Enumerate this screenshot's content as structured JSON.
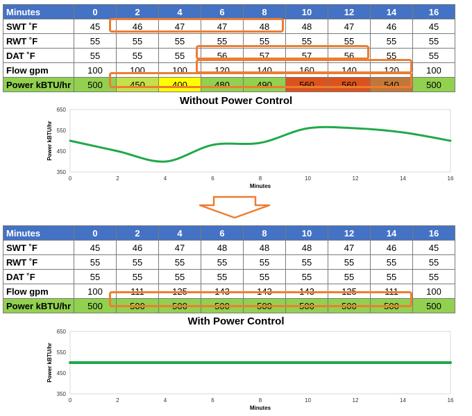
{
  "table_before": {
    "header": {
      "label": "Minutes",
      "values": [
        "0",
        "2",
        "4",
        "6",
        "8",
        "10",
        "12",
        "14",
        "16"
      ]
    },
    "rows": [
      {
        "label": "SWT ˚F",
        "values": [
          "45",
          "46",
          "47",
          "47",
          "48",
          "48",
          "47",
          "46",
          "45"
        ]
      },
      {
        "label": "RWT ˚F",
        "values": [
          "55",
          "55",
          "55",
          "55",
          "55",
          "55",
          "55",
          "55",
          "55"
        ]
      },
      {
        "label": "DAT ˚F",
        "values": [
          "55",
          "55",
          "55",
          "56",
          "57",
          "57",
          "56",
          "55",
          "55"
        ]
      },
      {
        "label": "Flow gpm",
        "values": [
          "100",
          "100",
          "100",
          "120",
          "140",
          "160",
          "140",
          "120",
          "100"
        ]
      }
    ],
    "power": {
      "label": "Power kBTU/hr",
      "values": [
        "500",
        "450",
        "400",
        "480",
        "490",
        "560",
        "560",
        "540",
        "500"
      ],
      "colors": [
        "#92d050",
        "#c4e14b",
        "#ffff00",
        "#92d050",
        "#92d050",
        "#d9531e",
        "#d9531e",
        "#c0773a",
        "#92d050"
      ],
      "text_colors": [
        "#000",
        "#000",
        "#000",
        "#000",
        "#000",
        "#000",
        "#000",
        "#000",
        "#000"
      ]
    }
  },
  "table_after": {
    "header": {
      "label": "Minutes",
      "values": [
        "0",
        "2",
        "4",
        "6",
        "8",
        "10",
        "12",
        "14",
        "16"
      ]
    },
    "rows": [
      {
        "label": "SWT ˚F",
        "values": [
          "45",
          "46",
          "47",
          "48",
          "48",
          "48",
          "47",
          "46",
          "45"
        ]
      },
      {
        "label": "RWT ˚F",
        "values": [
          "55",
          "55",
          "55",
          "55",
          "55",
          "55",
          "55",
          "55",
          "55"
        ]
      },
      {
        "label": "DAT ˚F",
        "values": [
          "55",
          "55",
          "55",
          "55",
          "55",
          "55",
          "55",
          "55",
          "55"
        ]
      },
      {
        "label": "Flow gpm",
        "values": [
          "100",
          "111",
          "125",
          "143",
          "143",
          "143",
          "125",
          "111",
          "100"
        ]
      }
    ],
    "power": {
      "label": "Power kBTU/hr",
      "values": [
        "500",
        "500",
        "500",
        "500",
        "500",
        "500",
        "500",
        "500",
        "500"
      ],
      "colors": [
        "#92d050",
        "#92d050",
        "#92d050",
        "#92d050",
        "#92d050",
        "#92d050",
        "#92d050",
        "#92d050",
        "#92d050"
      ],
      "text_colors": [
        "#000",
        "#000",
        "#000",
        "#000",
        "#000",
        "#000",
        "#000",
        "#000",
        "#000"
      ]
    }
  },
  "colors": {
    "header": "#4472c4",
    "highlight": "#ed7d31",
    "line": "#1fa94a",
    "good": "#92d050"
  },
  "chart_data": [
    {
      "type": "line",
      "title": "Without Power Control",
      "xlabel": "Minutes",
      "ylabel": "Power kBTU/hr",
      "x": [
        0,
        2,
        4,
        6,
        8,
        10,
        12,
        14,
        16
      ],
      "series": [
        {
          "values": [
            500,
            450,
            400,
            480,
            490,
            560,
            560,
            540,
            500
          ]
        }
      ],
      "xlim": [
        0,
        16
      ],
      "ylim": [
        350,
        650
      ],
      "xticks": [
        0,
        2,
        4,
        6,
        8,
        10,
        12,
        14,
        16
      ],
      "yticks": [
        350,
        450,
        550,
        650
      ],
      "grid": false
    },
    {
      "type": "line",
      "title": "With Power Control",
      "xlabel": "Minutes",
      "ylabel": "Power kBTU/hr",
      "x": [
        0,
        2,
        4,
        6,
        8,
        10,
        12,
        14,
        16
      ],
      "series": [
        {
          "values": [
            500,
            500,
            500,
            500,
            500,
            500,
            500,
            500,
            500
          ]
        }
      ],
      "xlim": [
        0,
        16
      ],
      "ylim": [
        350,
        650
      ],
      "xticks": [
        0,
        2,
        4,
        6,
        8,
        10,
        12,
        14,
        16
      ],
      "yticks": [
        350,
        450,
        550,
        650
      ],
      "grid": false
    }
  ]
}
